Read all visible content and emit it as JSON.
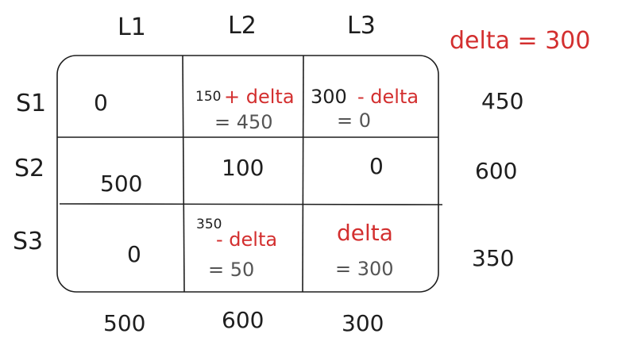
{
  "delta_note": "delta = 300",
  "columns": [
    "L1",
    "L2",
    "L3"
  ],
  "rows": [
    "S1",
    "S2",
    "S3"
  ],
  "supply": [
    "450",
    "600",
    "350"
  ],
  "demand": [
    "500",
    "600",
    "300"
  ],
  "cells": {
    "s1_l1": "0",
    "s1_l2_base": "150",
    "s1_l2_delta": "+ delta",
    "s1_l2_result": "= 450",
    "s1_l3_base": "300",
    "s1_l3_delta": "- delta",
    "s1_l3_result": "= 0",
    "s2_l1": "500",
    "s2_l2": "100",
    "s2_l3": "0",
    "s3_l1": "0",
    "s3_l2_base": "350",
    "s3_l2_delta": "- delta",
    "s3_l2_result": "= 50",
    "s3_l3_delta": "delta",
    "s3_l3_result": "= 300"
  },
  "colors": {
    "ink": "#1e1e1e",
    "accent": "#d32f2f",
    "muted": "#555555"
  }
}
